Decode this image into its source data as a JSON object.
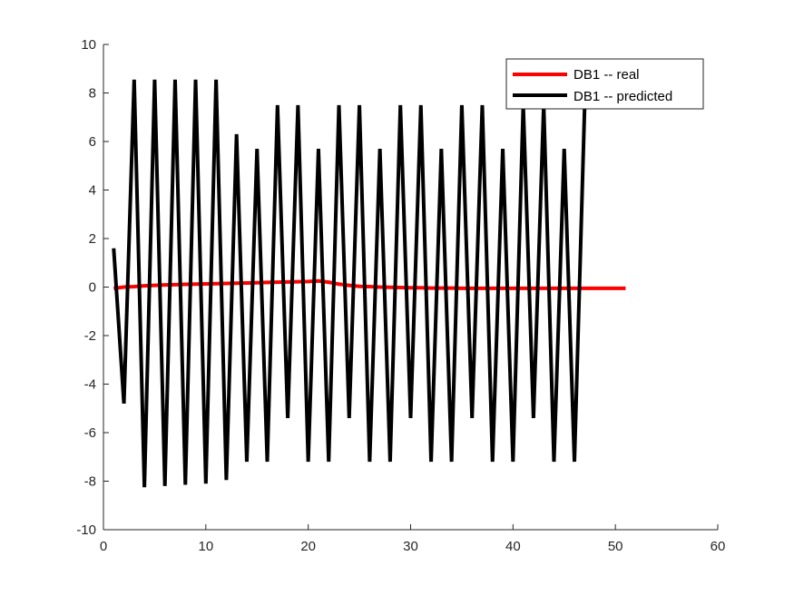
{
  "chart_data": {
    "type": "line",
    "title": "",
    "xlabel": "",
    "ylabel": "",
    "xlim": [
      0,
      60
    ],
    "ylim": [
      -10,
      10
    ],
    "xticks": [
      0,
      10,
      20,
      30,
      40,
      50,
      60
    ],
    "yticks": [
      -10,
      -8,
      -6,
      -4,
      -2,
      0,
      2,
      4,
      6,
      8,
      10
    ],
    "x_tick_labels": [
      "0",
      "10",
      "20",
      "30",
      "40",
      "50",
      "60"
    ],
    "y_tick_labels": [
      "-10",
      "-8",
      "-6",
      "-4",
      "-2",
      "0",
      "2",
      "4",
      "6",
      "8",
      "10"
    ],
    "grid": false,
    "legend_position": "top-right",
    "series": [
      {
        "name": "DB1 -- real",
        "color": "#ff0000",
        "x": [
          1,
          2,
          3,
          4,
          5,
          6,
          7,
          8,
          9,
          10,
          11,
          12,
          13,
          14,
          15,
          16,
          17,
          18,
          19,
          20,
          21,
          22,
          23,
          24,
          25,
          26,
          27,
          28,
          29,
          30,
          31,
          32,
          33,
          34,
          35,
          36,
          37,
          38,
          39,
          40,
          41,
          42,
          43,
          44,
          45,
          46,
          47,
          48,
          49,
          50,
          51
        ],
        "values": [
          -0.05,
          0.0,
          0.02,
          0.05,
          0.07,
          0.09,
          0.1,
          0.11,
          0.12,
          0.13,
          0.14,
          0.15,
          0.16,
          0.17,
          0.18,
          0.19,
          0.2,
          0.21,
          0.22,
          0.23,
          0.25,
          0.2,
          0.12,
          0.07,
          0.03,
          0.02,
          0.0,
          -0.01,
          -0.02,
          -0.03,
          -0.03,
          -0.04,
          -0.04,
          -0.04,
          -0.05,
          -0.05,
          -0.05,
          -0.05,
          -0.05,
          -0.05,
          -0.05,
          -0.05,
          -0.05,
          -0.05,
          -0.05,
          -0.05,
          -0.05,
          -0.05,
          -0.05,
          -0.05,
          -0.05
        ]
      },
      {
        "name": "DB1 -- predicted",
        "color": "#000000",
        "x": [
          1,
          2,
          3,
          4,
          5,
          6,
          7,
          8,
          9,
          10,
          11,
          12,
          13,
          14,
          15,
          16,
          17,
          18,
          19,
          20,
          21,
          22,
          23,
          24,
          25,
          26,
          27,
          28,
          29,
          30,
          31,
          32,
          33,
          34,
          35,
          36,
          37,
          38,
          39,
          40,
          41,
          42,
          43,
          44,
          45,
          46,
          47
        ],
        "values": [
          1.6,
          -4.8,
          8.55,
          -8.25,
          8.55,
          -8.2,
          8.55,
          -8.15,
          8.55,
          -8.1,
          8.55,
          -7.95,
          6.3,
          -7.2,
          5.7,
          -7.2,
          7.5,
          -5.4,
          7.5,
          -7.2,
          5.7,
          -7.2,
          7.5,
          -5.4,
          7.5,
          -7.2,
          5.7,
          -7.2,
          7.5,
          -5.4,
          7.5,
          -7.2,
          5.7,
          -7.2,
          7.5,
          -5.4,
          7.5,
          -7.2,
          5.7,
          -7.2,
          7.5,
          -5.4,
          7.5,
          -7.2,
          5.7,
          -7.2,
          7.5
        ]
      }
    ]
  }
}
